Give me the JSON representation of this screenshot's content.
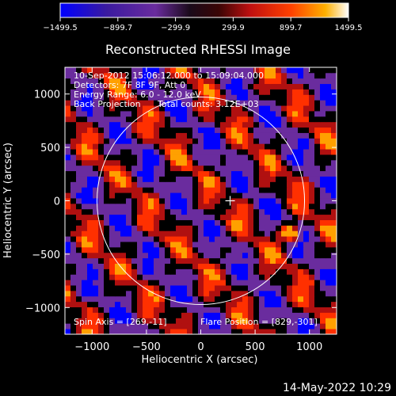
{
  "colors": {
    "background": "#000000",
    "foreground": "#ffffff",
    "colormap": [
      "#0000ff",
      "#6a2c9e",
      "#000000",
      "#b01010",
      "#ff3000",
      "#ffa000",
      "#ffffff"
    ]
  },
  "chart_data": {
    "type": "heatmap",
    "title": "Reconstructed RHESSI Image",
    "xlabel": "Heliocentric X (arcsec)",
    "ylabel": "Heliocentric Y (arcsec)",
    "xlim": [
      -1250,
      1250
    ],
    "ylim": [
      -1250,
      1250
    ],
    "xticks": [
      -1000,
      -500,
      0,
      500,
      1000
    ],
    "yticks": [
      -1000,
      -500,
      0,
      500,
      1000
    ],
    "xtick_labels": [
      "−1000",
      "−500",
      "0",
      "500",
      "1000"
    ],
    "ytick_labels": [
      "−1000",
      "−500",
      "0",
      "500",
      "1000"
    ],
    "colorbar": {
      "range": [
        -1499.5,
        1499.5
      ],
      "tick_labels": [
        "−1499.5",
        "−899.7",
        "−299.9",
        "299.9",
        "899.7",
        "1499.5"
      ]
    },
    "annotations": {
      "time_range": "10-Sep-2012 15:06:12.000 to 15:09:04.000",
      "detectors": "Detectors: 7F 8F 9F, Att 0",
      "energy_range": "Energy Range: 6.0 - 12.0 keV",
      "method": "Back Projection",
      "total_counts": "Total counts: 3.12E+03",
      "spin_axis": "Spin Axis = [269,-11]",
      "flare_position": "Flare Position = [829,-301]"
    },
    "solar_limb_radius_arcsec": 955,
    "sun_center_marker": [
      270,
      0
    ],
    "bright_source": {
      "x": 829,
      "y": -301
    }
  },
  "footer": {
    "timestamp": "14-May-2022 10:29"
  }
}
